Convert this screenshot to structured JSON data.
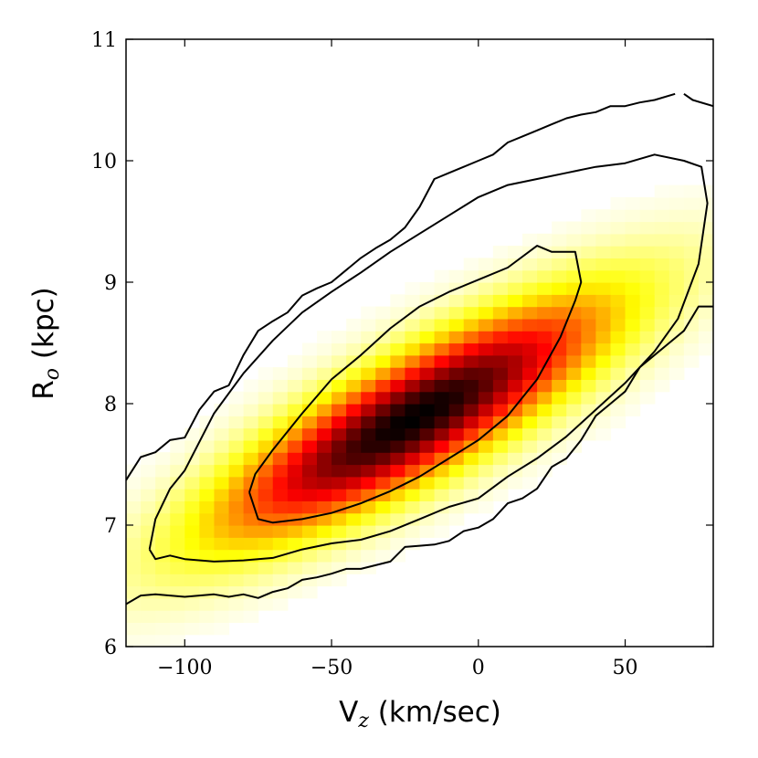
{
  "chart_data": {
    "type": "heatmap",
    "title": "",
    "xlabel": {
      "main": "V",
      "sub": "z",
      "unit": " (km/sec)"
    },
    "ylabel": {
      "main": "R",
      "sub": "o",
      "unit": " (kpc)"
    },
    "xlim": [
      -120,
      80
    ],
    "ylim": [
      6,
      11
    ],
    "xticks": [
      -100,
      -50,
      0,
      50
    ],
    "xtick_labels": [
      "−100",
      "−50",
      "0",
      "50"
    ],
    "yticks": [
      6,
      7,
      8,
      9,
      10,
      11
    ],
    "ytick_labels": [
      "6",
      "7",
      "8",
      "9",
      "10",
      "11"
    ],
    "colormap": "hot_r",
    "grid": false,
    "density_model": {
      "center": [
        -22,
        7.88
      ],
      "slope_kpc_per_kms": 0.0135,
      "sigma_along": 52,
      "sigma_across": 0.33,
      "bin_size": [
        5,
        0.1
      ]
    },
    "contours": [
      {
        "level": "outer",
        "points": [
          [
            -120,
            6.35
          ],
          [
            -115,
            6.42
          ],
          [
            -110,
            6.43
          ],
          [
            -105,
            6.42
          ],
          [
            -100,
            6.41
          ],
          [
            -95,
            6.42
          ],
          [
            -90,
            6.43
          ],
          [
            -85,
            6.41
          ],
          [
            -80,
            6.43
          ],
          [
            -75,
            6.4
          ],
          [
            -70,
            6.45
          ],
          [
            -65,
            6.48
          ],
          [
            -60,
            6.55
          ],
          [
            -55,
            6.57
          ],
          [
            -50,
            6.6
          ],
          [
            -45,
            6.64
          ],
          [
            -40,
            6.64
          ],
          [
            -35,
            6.67
          ],
          [
            -30,
            6.7
          ],
          [
            -25,
            6.82
          ],
          [
            -20,
            6.83
          ],
          [
            -15,
            6.84
          ],
          [
            -10,
            6.87
          ],
          [
            -5,
            6.95
          ],
          [
            0,
            6.98
          ],
          [
            5,
            7.05
          ],
          [
            10,
            7.18
          ],
          [
            15,
            7.22
          ],
          [
            20,
            7.3
          ],
          [
            25,
            7.48
          ],
          [
            30,
            7.55
          ],
          [
            35,
            7.7
          ],
          [
            40,
            7.9
          ],
          [
            45,
            8.0
          ],
          [
            50,
            8.1
          ],
          [
            55,
            8.3
          ],
          [
            60,
            8.4
          ],
          [
            65,
            8.5
          ],
          [
            70,
            8.6
          ],
          [
            75,
            8.8
          ],
          [
            80,
            8.8
          ]
        ]
      },
      {
        "level": "outer-top",
        "points": [
          [
            -120,
            7.37
          ],
          [
            -115,
            7.56
          ],
          [
            -110,
            7.6
          ],
          [
            -105,
            7.7
          ],
          [
            -100,
            7.72
          ],
          [
            -95,
            7.95
          ],
          [
            -90,
            8.1
          ],
          [
            -85,
            8.15
          ],
          [
            -80,
            8.4
          ],
          [
            -75,
            8.6
          ],
          [
            -70,
            8.68
          ],
          [
            -65,
            8.75
          ],
          [
            -60,
            8.89
          ],
          [
            -55,
            8.95
          ],
          [
            -50,
            9.0
          ],
          [
            -45,
            9.1
          ],
          [
            -40,
            9.2
          ],
          [
            -35,
            9.28
          ],
          [
            -30,
            9.35
          ],
          [
            -25,
            9.45
          ],
          [
            -20,
            9.62
          ],
          [
            -15,
            9.85
          ],
          [
            -10,
            9.9
          ],
          [
            -5,
            9.95
          ],
          [
            0,
            10.0
          ],
          [
            5,
            10.05
          ],
          [
            10,
            10.15
          ],
          [
            15,
            10.2
          ],
          [
            20,
            10.25
          ],
          [
            25,
            10.3
          ],
          [
            30,
            10.35
          ],
          [
            35,
            10.38
          ],
          [
            40,
            10.4
          ],
          [
            45,
            10.45
          ],
          [
            50,
            10.45
          ],
          [
            55,
            10.48
          ],
          [
            60,
            10.5
          ],
          [
            67,
            10.55
          ]
        ]
      },
      {
        "level": "outer-top-right",
        "points": [
          [
            70,
            10.55
          ],
          [
            73,
            10.5
          ],
          [
            80,
            10.45
          ]
        ]
      },
      {
        "level": "middle",
        "points": [
          [
            -112,
            6.8
          ],
          [
            -110,
            6.72
          ],
          [
            -105,
            6.75
          ],
          [
            -100,
            6.72
          ],
          [
            -90,
            6.7
          ],
          [
            -80,
            6.71
          ],
          [
            -70,
            6.73
          ],
          [
            -60,
            6.8
          ],
          [
            -50,
            6.85
          ],
          [
            -40,
            6.88
          ],
          [
            -30,
            6.95
          ],
          [
            -20,
            7.05
          ],
          [
            -10,
            7.15
          ],
          [
            0,
            7.22
          ],
          [
            10,
            7.4
          ],
          [
            20,
            7.55
          ],
          [
            30,
            7.73
          ],
          [
            40,
            7.95
          ],
          [
            50,
            8.17
          ],
          [
            60,
            8.43
          ],
          [
            68,
            8.7
          ],
          [
            75,
            9.15
          ],
          [
            78,
            9.65
          ],
          [
            76,
            9.95
          ],
          [
            70,
            10.0
          ],
          [
            60,
            10.05
          ],
          [
            50,
            9.98
          ],
          [
            40,
            9.95
          ],
          [
            30,
            9.9
          ],
          [
            20,
            9.85
          ],
          [
            10,
            9.8
          ],
          [
            0,
            9.7
          ],
          [
            -10,
            9.55
          ],
          [
            -20,
            9.4
          ],
          [
            -30,
            9.25
          ],
          [
            -40,
            9.08
          ],
          [
            -50,
            8.92
          ],
          [
            -60,
            8.75
          ],
          [
            -70,
            8.52
          ],
          [
            -80,
            8.25
          ],
          [
            -90,
            7.92
          ],
          [
            -100,
            7.45
          ],
          [
            -105,
            7.3
          ],
          [
            -110,
            7.05
          ],
          [
            -112,
            6.8
          ]
        ]
      },
      {
        "level": "inner",
        "points": [
          [
            -78,
            7.27
          ],
          [
            -75,
            7.05
          ],
          [
            -70,
            7.02
          ],
          [
            -60,
            7.05
          ],
          [
            -50,
            7.1
          ],
          [
            -40,
            7.18
          ],
          [
            -30,
            7.28
          ],
          [
            -20,
            7.4
          ],
          [
            -10,
            7.55
          ],
          [
            0,
            7.7
          ],
          [
            10,
            7.9
          ],
          [
            20,
            8.2
          ],
          [
            28,
            8.55
          ],
          [
            33,
            8.85
          ],
          [
            35,
            9.0
          ],
          [
            33,
            9.25
          ],
          [
            25,
            9.25
          ],
          [
            20,
            9.3
          ],
          [
            10,
            9.12
          ],
          [
            0,
            9.02
          ],
          [
            -10,
            8.92
          ],
          [
            -20,
            8.8
          ],
          [
            -30,
            8.62
          ],
          [
            -40,
            8.4
          ],
          [
            -50,
            8.2
          ],
          [
            -60,
            7.92
          ],
          [
            -70,
            7.62
          ],
          [
            -76,
            7.42
          ],
          [
            -78,
            7.27
          ]
        ]
      }
    ]
  }
}
